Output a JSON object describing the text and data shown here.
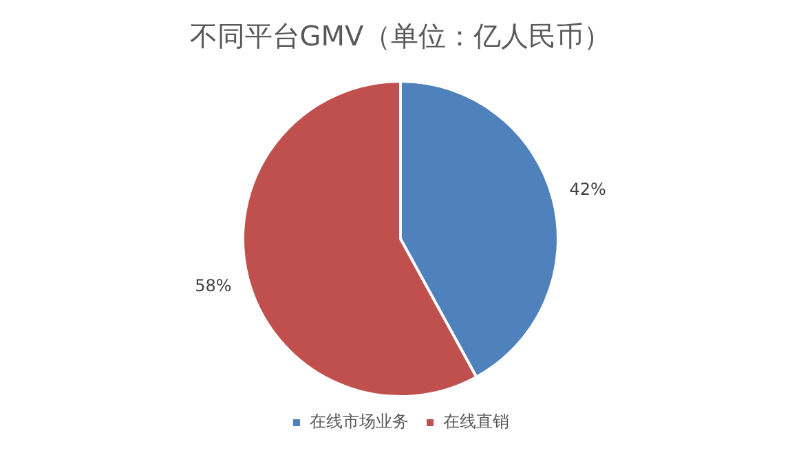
{
  "chart_data": {
    "type": "pie",
    "title": "不同平台GMV（单位：亿人民币）",
    "categories": [
      "在线市场业务",
      "在线直销"
    ],
    "values": [
      42,
      58
    ],
    "colors": [
      "#4f81bd",
      "#c0504d"
    ],
    "value_labels": [
      "42%",
      "58%"
    ],
    "legend": "bottom"
  }
}
